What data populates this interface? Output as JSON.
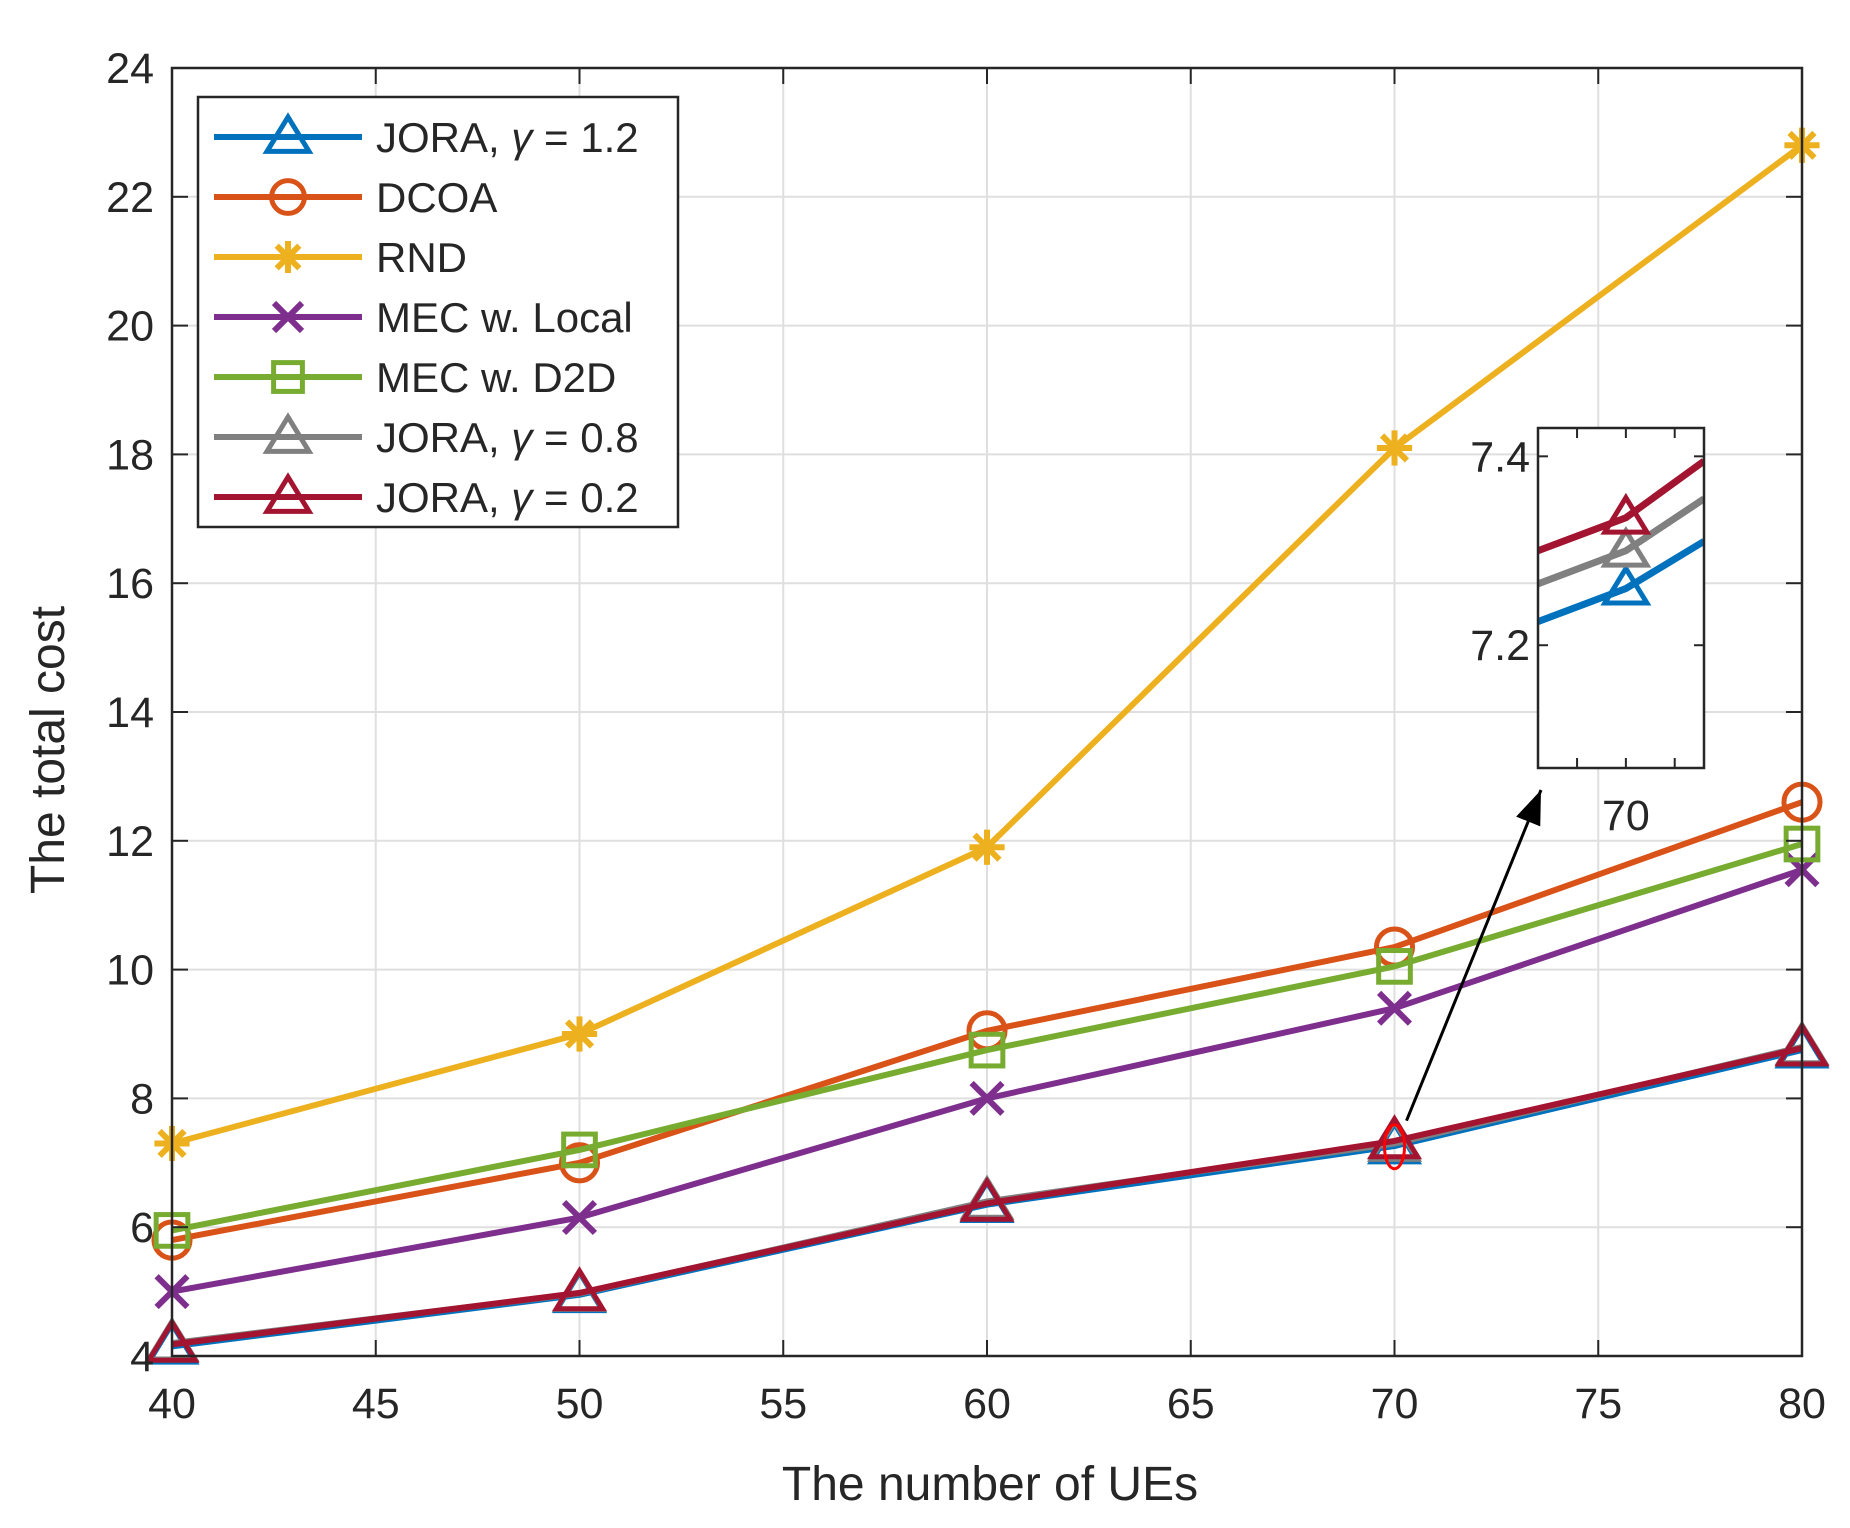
{
  "chart_data": {
    "type": "line",
    "xlabel": "The number of UEs",
    "ylabel": "The total cost",
    "xlim": [
      40,
      80
    ],
    "ylim": [
      4,
      24
    ],
    "xticks": [
      40,
      45,
      50,
      55,
      60,
      65,
      70,
      75,
      80
    ],
    "yticks": [
      4,
      6,
      8,
      10,
      12,
      14,
      16,
      18,
      20,
      22,
      24
    ],
    "grid": true,
    "legend_position": "top-left",
    "x": [
      40,
      50,
      60,
      70,
      80
    ],
    "series": [
      {
        "name": "JORA, γ = 1.2",
        "label_prefix": "JORA, ",
        "label_symbol": "γ",
        "label_suffix": " = 1.2",
        "color": "#0072BD",
        "marker": "triangle",
        "values": [
          4.15,
          4.95,
          6.35,
          7.26,
          8.75
        ]
      },
      {
        "name": "DCOA",
        "label_prefix": "DCOA",
        "label_symbol": "",
        "label_suffix": "",
        "color": "#D95319",
        "marker": "circle",
        "values": [
          5.8,
          7.0,
          9.05,
          10.35,
          12.6
        ]
      },
      {
        "name": "RND",
        "label_prefix": "RND",
        "label_symbol": "",
        "label_suffix": "",
        "color": "#EDB120",
        "marker": "asterisk",
        "values": [
          7.3,
          9.0,
          11.9,
          18.1,
          22.8
        ]
      },
      {
        "name": "MEC w. Local",
        "label_prefix": "MEC w. Local",
        "label_symbol": "",
        "label_suffix": "",
        "color": "#7E2F8E",
        "marker": "x",
        "values": [
          5.0,
          6.15,
          8.0,
          9.4,
          11.55
        ]
      },
      {
        "name": "MEC w. D2D",
        "label_prefix": "MEC w. D2D",
        "label_symbol": "",
        "label_suffix": "",
        "color": "#77AC30",
        "marker": "square",
        "values": [
          5.95,
          7.2,
          8.75,
          10.05,
          11.95
        ]
      },
      {
        "name": "JORA, γ = 0.8",
        "label_prefix": "JORA, ",
        "label_symbol": "γ",
        "label_suffix": " = 0.8",
        "color": "#808080",
        "marker": "triangle",
        "values": [
          4.2,
          4.97,
          6.4,
          7.3,
          8.8
        ]
      },
      {
        "name": "JORA, γ = 0.2",
        "label_prefix": "JORA, ",
        "label_symbol": "γ",
        "label_suffix": " = 0.2",
        "color": "#A2142F",
        "marker": "triangle",
        "values": [
          4.18,
          4.98,
          6.37,
          7.34,
          8.78
        ]
      }
    ],
    "inset": {
      "xticks": [
        70
      ],
      "yticks": [
        7.2,
        7.4
      ],
      "xlim": [
        69.1,
        70.8
      ],
      "ylim": [
        7.07,
        7.43
      ],
      "x": [
        69.1,
        70,
        70.8
      ],
      "series_values": [
        {
          "series": "JORA, γ = 1.2",
          "values": [
            7.225,
            7.26,
            7.31
          ]
        },
        {
          "series": "JORA, γ = 0.8",
          "values": [
            7.265,
            7.3,
            7.355
          ]
        },
        {
          "series": "JORA, γ = 0.2",
          "values": [
            7.3,
            7.335,
            7.395
          ]
        }
      ]
    }
  }
}
